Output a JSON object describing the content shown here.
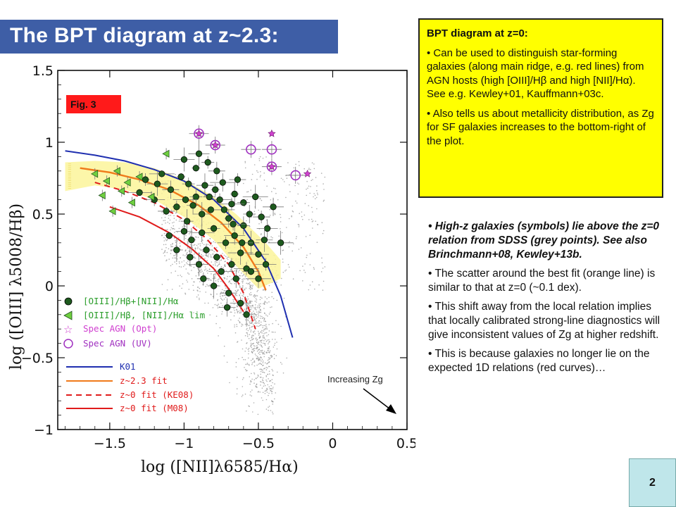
{
  "slide": {
    "title": "The BPT diagram at z~2.3:",
    "page_number": "2"
  },
  "yellow_box": {
    "heading": "BPT diagram at z=0:",
    "bullet1": "• Can be used to distinguish star-forming galaxies (along main ridge, e.g. red lines) from AGN hosts (high [OIII]/Hβ and high [NII]/Hα). See e.g. Kewley+01, Kauffmann+03c.",
    "bullet2": "• Also tells us about metallicity distribution, as Zg for SF galaxies increases to the bottom-right of the plot."
  },
  "notes": {
    "n1": "• High-z galaxies (symbols) lie above the z=0 relation from SDSS (grey points). See also Brinchmann+08, Kewley+13b.",
    "n2": "• The scatter around the best fit (orange line) is similar to that at z=0 (~0.1 dex).",
    "n3": "• This shift away from the local relation implies that locally calibrated strong-line diagnostics will give inconsistent values of Zg at higher redshift.",
    "n4": "• This is because galaxies no longer lie on the expected 1D relations (red curves)…"
  },
  "chart_data": {
    "type": "scatter",
    "fig_label": "Fig. 3",
    "xlabel": "log ([NII]λ6585/Hα)",
    "ylabel": "log ([OIII] λ5008/Hβ)",
    "xlim": [
      -1.85,
      0.5
    ],
    "ylim": [
      -1.0,
      1.5
    ],
    "xticks": [
      "-1.5",
      "-1",
      "-0.5",
      "0",
      "0.5"
    ],
    "xtick_values": [
      -1.5,
      -1.0,
      -0.5,
      0.0,
      0.5
    ],
    "yticks": [
      "1.5",
      "1",
      "0.5",
      "0",
      "-0.5",
      "-1"
    ],
    "ytick_values": [
      1.5,
      1.0,
      0.5,
      0.0,
      -0.5,
      -1.0
    ],
    "annotation": "Increasing Zg",
    "legend_markers": [
      "[OIII]/Hβ+[NII]/Hα",
      "[OIII]/Hβ, [NII]/Hα lim",
      "Spec AGN (Opt)",
      "Spec AGN (UV)"
    ],
    "legend_lines": [
      "K01",
      "z~2.3 fit",
      "z~0 fit (KE08)",
      "z~0 fit (M08)"
    ],
    "colors": {
      "k01": "#1f2fb0",
      "fit_z23": "#f07a1a",
      "fit_ke08": "#e01b1b",
      "fit_m08": "#e01b1b",
      "band": "#fbf49a",
      "sdss": "#8c8c8c",
      "detection": "#1e5a1e",
      "limit": "#6fcf3f",
      "agn_opt": "#d040d0",
      "agn_uv": "#a030c0",
      "fig_tag": "#ff1a1a"
    },
    "curves": {
      "k01": {
        "x": [
          -1.8,
          -1.6,
          -1.4,
          -1.2,
          -1.0,
          -0.8,
          -0.6,
          -0.45,
          -0.35,
          -0.27
        ],
        "y": [
          0.94,
          0.91,
          0.87,
          0.81,
          0.73,
          0.6,
          0.4,
          0.17,
          -0.07,
          -0.36
        ]
      },
      "fit_z23": {
        "x": [
          -1.7,
          -1.5,
          -1.3,
          -1.1,
          -0.9,
          -0.75,
          -0.6,
          -0.5,
          -0.45
        ],
        "y": [
          0.82,
          0.79,
          0.74,
          0.67,
          0.56,
          0.44,
          0.27,
          0.1,
          -0.03
        ]
      },
      "fit_ke08": {
        "x": [
          -1.6,
          -1.4,
          -1.2,
          -1.0,
          -0.85,
          -0.7,
          -0.6,
          -0.52
        ],
        "y": [
          0.72,
          0.66,
          0.58,
          0.46,
          0.33,
          0.15,
          -0.05,
          -0.3
        ]
      },
      "fit_m08": {
        "x": [
          -1.5,
          -1.3,
          -1.1,
          -0.95,
          -0.8,
          -0.7,
          -0.6
        ],
        "y": [
          0.55,
          0.48,
          0.37,
          0.26,
          0.12,
          -0.02,
          -0.18
        ]
      }
    },
    "band": {
      "upper": {
        "x": [
          -1.8,
          -1.6,
          -1.4,
          -1.2,
          -1.0,
          -0.8,
          -0.65,
          -0.45,
          -0.35
        ],
        "y": [
          0.86,
          0.87,
          0.86,
          0.82,
          0.74,
          0.62,
          0.5,
          0.3,
          0.18
        ]
      },
      "lower": {
        "x": [
          -1.8,
          -1.6,
          -1.4,
          -1.2,
          -1.0,
          -0.8,
          -0.65,
          -0.5,
          -0.35
        ],
        "y": [
          0.66,
          0.7,
          0.67,
          0.6,
          0.48,
          0.32,
          0.14,
          -0.02,
          0.05
        ]
      }
    },
    "series": [
      {
        "name": "[OIII]/Hβ+[NII]/Hα",
        "points": [
          [
            -1.02,
            0.76
          ],
          [
            -0.97,
            0.71
          ],
          [
            -1.09,
            0.67
          ],
          [
            -1.18,
            0.71
          ],
          [
            -1.3,
            0.65
          ],
          [
            -1.05,
            0.55
          ],
          [
            -0.92,
            0.62
          ],
          [
            -0.86,
            0.7
          ],
          [
            -0.82,
            0.53
          ],
          [
            -0.76,
            0.6
          ],
          [
            -0.7,
            0.47
          ],
          [
            -0.98,
            0.45
          ],
          [
            -1.12,
            0.52
          ],
          [
            -1.2,
            0.6
          ],
          [
            -0.88,
            0.37
          ],
          [
            -0.95,
            0.32
          ],
          [
            -0.8,
            0.4
          ],
          [
            -0.72,
            0.3
          ],
          [
            -0.66,
            0.35
          ],
          [
            -0.62,
            0.23
          ],
          [
            -0.78,
            0.2
          ],
          [
            -0.85,
            0.25
          ],
          [
            -1.0,
            0.38
          ],
          [
            -0.9,
            0.15
          ],
          [
            -0.75,
            0.1
          ],
          [
            -0.68,
            0.15
          ],
          [
            -0.6,
            0.42
          ],
          [
            -0.55,
            0.3
          ],
          [
            -0.5,
            0.22
          ],
          [
            -0.58,
            0.12
          ],
          [
            -0.65,
            0.05
          ],
          [
            -0.8,
            0.0
          ],
          [
            -0.7,
            -0.05
          ],
          [
            -0.62,
            -0.12
          ],
          [
            -0.74,
            0.72
          ],
          [
            -0.66,
            0.64
          ],
          [
            -0.6,
            0.58
          ],
          [
            -0.48,
            0.48
          ],
          [
            -0.44,
            0.4
          ],
          [
            -0.52,
            0.62
          ],
          [
            -0.92,
            0.82
          ],
          [
            -0.84,
            0.86
          ],
          [
            -0.78,
            0.8
          ],
          [
            -1.0,
            0.88
          ],
          [
            -1.15,
            0.78
          ],
          [
            -1.26,
            0.74
          ],
          [
            -0.94,
            0.56
          ],
          [
            -0.88,
            0.5
          ],
          [
            -0.73,
            0.53
          ],
          [
            -0.68,
            0.57
          ],
          [
            -0.96,
            0.2
          ],
          [
            -1.05,
            0.25
          ],
          [
            -0.55,
            0.1
          ],
          [
            -0.45,
            0.15
          ],
          [
            -0.5,
            0.05
          ],
          [
            -0.58,
            -0.2
          ],
          [
            -0.83,
            0.62
          ],
          [
            -0.64,
            0.74
          ],
          [
            -0.4,
            0.55
          ],
          [
            -0.35,
            0.3
          ],
          [
            -1.1,
            0.35
          ],
          [
            -0.87,
            0.05
          ],
          [
            -0.71,
            -0.15
          ],
          [
            -0.9,
            0.92
          ],
          [
            -0.99,
            0.6
          ],
          [
            -0.79,
            0.67
          ],
          [
            -0.56,
            0.5
          ],
          [
            -0.46,
            0.32
          ],
          [
            -0.61,
            0.3
          ],
          [
            -0.67,
            0.43
          ]
        ]
      },
      {
        "name": "[OIII]/Hβ, [NII]/Hα lim",
        "points": [
          [
            -1.6,
            0.78
          ],
          [
            -1.52,
            0.73
          ],
          [
            -1.45,
            0.8
          ],
          [
            -1.38,
            0.72
          ],
          [
            -1.3,
            0.76
          ],
          [
            -1.55,
            0.63
          ],
          [
            -1.42,
            0.66
          ],
          [
            -1.22,
            0.62
          ],
          [
            -1.48,
            0.52
          ],
          [
            -1.12,
            0.92
          ],
          [
            -1.35,
            0.58
          ]
        ]
      },
      {
        "name": "Spec AGN (Opt)",
        "points": [
          [
            -0.9,
            1.06
          ],
          [
            -0.79,
            0.98
          ],
          [
            -0.41,
            1.06
          ],
          [
            -0.41,
            0.83
          ],
          [
            -0.17,
            0.78
          ]
        ]
      },
      {
        "name": "Spec AGN (UV)",
        "points": [
          [
            -0.9,
            1.06
          ],
          [
            -0.79,
            0.98
          ],
          [
            -0.55,
            0.95
          ],
          [
            -0.41,
            0.95
          ],
          [
            -0.41,
            0.83
          ],
          [
            -0.25,
            0.77
          ]
        ]
      }
    ]
  }
}
